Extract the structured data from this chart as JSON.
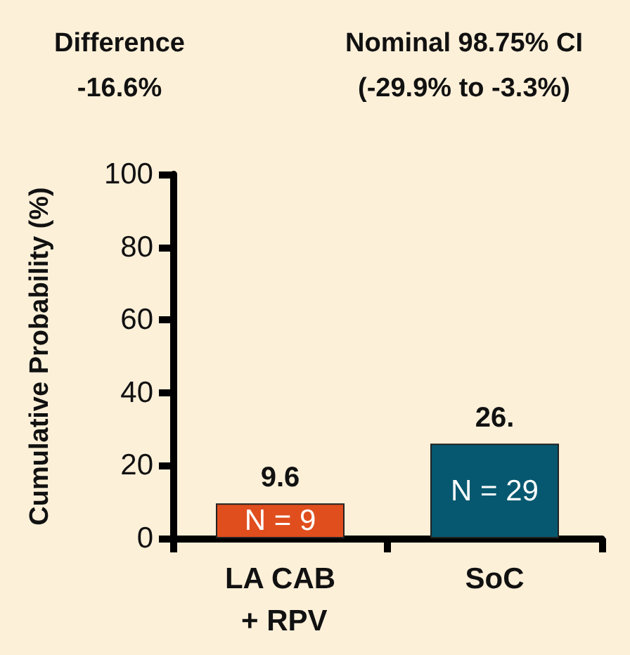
{
  "chart_data": {
    "type": "bar",
    "title": "Difference\n-16.6%",
    "subtitle": "Nominal 98.75% CI\n(-29.9% to -3.3%)",
    "ylabel": "Cumulative Probability (%)",
    "categories": [
      "LA CAB + RPV",
      "SoC"
    ],
    "values": [
      9.6,
      26
    ],
    "colors": [
      "#e04e1e",
      "#05586f"
    ],
    "value_labels": [
      "9.6",
      "26."
    ],
    "annotations": [
      "N = 9",
      "N = 29"
    ],
    "ylim": [
      0,
      100
    ],
    "yticks": [
      0,
      20,
      40,
      60,
      80,
      100
    ],
    "grid": false
  }
}
